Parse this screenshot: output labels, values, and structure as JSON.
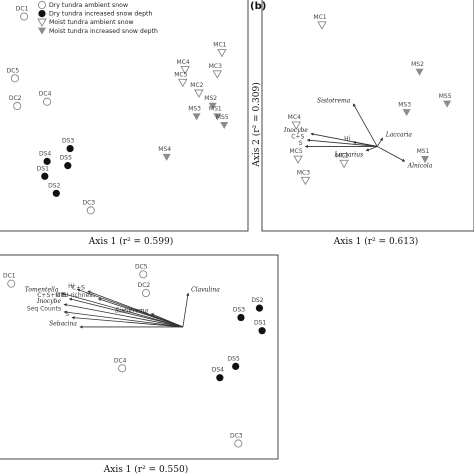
{
  "panel_b_label": "(b)",
  "legend": [
    {
      "label": "Dry tundra ambient snow",
      "marker": "open-circle"
    },
    {
      "label": "Dry tundra increased snow depth",
      "marker": "filled-circle"
    },
    {
      "label": "Moist tundra ambient snow",
      "marker": "open-triangle"
    },
    {
      "label": "Moist tundra increased snow depth",
      "marker": "filled-triangle"
    }
  ],
  "colors": {
    "open_fill": "#ffffff",
    "open_stroke": "#888888",
    "filled_circle": "#111111",
    "filled_triangle": "#8c8c8c",
    "vector": "#333333"
  },
  "chart_data": [
    {
      "type": "scatter",
      "panel": "a",
      "xlabel": "Axis 1 (r² = 0.599)",
      "ylabel": "",
      "xlim": [
        0,
        100
      ],
      "ylim": [
        0,
        100
      ],
      "points": [
        {
          "label": "DC1",
          "group": "dry-ambient",
          "x": 7,
          "y": 96
        },
        {
          "label": "DC5",
          "group": "dry-ambient",
          "x": 3,
          "y": 67
        },
        {
          "label": "DC2",
          "group": "dry-ambient",
          "x": 4,
          "y": 54
        },
        {
          "label": "DC4",
          "group": "dry-ambient",
          "x": 17,
          "y": 56
        },
        {
          "label": "DC3",
          "group": "dry-ambient",
          "x": 36,
          "y": 5
        },
        {
          "label": "DS4",
          "group": "dry-increased",
          "x": 17,
          "y": 28
        },
        {
          "label": "DS3",
          "group": "dry-increased",
          "x": 27,
          "y": 34
        },
        {
          "label": "DS5",
          "group": "dry-increased",
          "x": 26,
          "y": 26
        },
        {
          "label": "DS1",
          "group": "dry-increased",
          "x": 16,
          "y": 21
        },
        {
          "label": "DS2",
          "group": "dry-increased",
          "x": 21,
          "y": 13
        },
        {
          "label": "MC1",
          "group": "moist-ambient",
          "x": 93,
          "y": 79
        },
        {
          "label": "MC4",
          "group": "moist-ambient",
          "x": 77,
          "y": 71
        },
        {
          "label": "MC3",
          "group": "moist-ambient",
          "x": 91,
          "y": 69
        },
        {
          "label": "MC5",
          "group": "moist-ambient",
          "x": 76,
          "y": 65
        },
        {
          "label": "MC2",
          "group": "moist-ambient",
          "x": 83,
          "y": 60
        },
        {
          "label": "MS2",
          "group": "moist-increased",
          "x": 89,
          "y": 54
        },
        {
          "label": "MS3",
          "group": "moist-increased",
          "x": 82,
          "y": 49
        },
        {
          "label": "MS1",
          "group": "moist-increased",
          "x": 91,
          "y": 49
        },
        {
          "label": "MS5",
          "group": "moist-increased",
          "x": 94,
          "y": 45
        },
        {
          "label": "MS4",
          "group": "moist-increased",
          "x": 69,
          "y": 30
        }
      ]
    },
    {
      "type": "scatter",
      "panel": "b",
      "xlabel": "Axis 1 (r² = 0.613)",
      "ylabel": "Axis 2 (r² = 0.309)",
      "xlim": [
        0,
        100
      ],
      "ylim": [
        0,
        100
      ],
      "points": [
        {
          "label": "MC1",
          "group": "moist-ambient",
          "x": 25,
          "y": 92
        },
        {
          "label": "MS2",
          "group": "moist-increased",
          "x": 78,
          "y": 70
        },
        {
          "label": "MS5",
          "group": "moist-increased",
          "x": 93,
          "y": 55
        },
        {
          "label": "MS3",
          "group": "moist-increased",
          "x": 71,
          "y": 51
        },
        {
          "label": "MC4",
          "group": "moist-ambient",
          "x": 11,
          "y": 45
        },
        {
          "label": "MS1",
          "group": "moist-increased",
          "x": 81,
          "y": 29
        },
        {
          "label": "MC5",
          "group": "moist-ambient",
          "x": 12,
          "y": 29
        },
        {
          "label": "MC2",
          "group": "moist-ambient",
          "x": 37,
          "y": 27
        },
        {
          "label": "MC3",
          "group": "moist-ambient",
          "x": 16,
          "y": 19
        }
      ],
      "vector_origin": {
        "x": 55,
        "y": 35
      },
      "vectors": [
        {
          "label": "Sistotrema",
          "x": 42,
          "y": 55
        },
        {
          "label": "Hi",
          "x": 42,
          "y": 37
        },
        {
          "label": "Inocybe",
          "x": 19,
          "y": 41
        },
        {
          "label": "C+S",
          "x": 17,
          "y": 38
        },
        {
          "label": "S",
          "x": 16,
          "y": 35
        },
        {
          "label": "Lactarius",
          "x": 49,
          "y": 33
        },
        {
          "label": "Laccaria",
          "x": 58,
          "y": 39
        },
        {
          "label": "Alnicola",
          "x": 70,
          "y": 28
        }
      ]
    },
    {
      "type": "scatter",
      "panel": "c",
      "xlabel": "Axis 1 (r² = 0.550)",
      "ylabel": "",
      "xlim": [
        0,
        100
      ],
      "ylim": [
        0,
        100
      ],
      "points": [
        {
          "label": "DC1",
          "group": "dry-ambient",
          "x": 2,
          "y": 89
        },
        {
          "label": "DC5",
          "group": "dry-ambient",
          "x": 52,
          "y": 94
        },
        {
          "label": "DC2",
          "group": "dry-ambient",
          "x": 53,
          "y": 84
        },
        {
          "label": "DS2",
          "group": "dry-increased",
          "x": 96,
          "y": 76
        },
        {
          "label": "DS3",
          "group": "dry-increased",
          "x": 89,
          "y": 71
        },
        {
          "label": "DS1",
          "group": "dry-increased",
          "x": 97,
          "y": 64
        },
        {
          "label": "DC4",
          "group": "dry-ambient",
          "x": 44,
          "y": 44
        },
        {
          "label": "DS5",
          "group": "dry-increased",
          "x": 87,
          "y": 45
        },
        {
          "label": "DS4",
          "group": "dry-increased",
          "x": 81,
          "y": 39
        },
        {
          "label": "DC3",
          "group": "dry-ambient",
          "x": 88,
          "y": 4
        }
      ],
      "vector_origin": {
        "x": 67,
        "y": 66
      },
      "vectors": [
        {
          "label": "Hi",
          "x": 27,
          "y": 86
        },
        {
          "label": "C+S",
          "x": 31,
          "y": 85
        },
        {
          "label": "Tomentella",
          "x": 21,
          "y": 84
        },
        {
          "label": "C+S+MIB",
          "x": 24,
          "y": 81
        },
        {
          "label": "OTU richness",
          "x": 35,
          "y": 81
        },
        {
          "label": "Inocybe",
          "x": 22,
          "y": 78
        },
        {
          "label": "Seq Counts",
          "x": 22,
          "y": 74
        },
        {
          "label": "S",
          "x": 25,
          "y": 71
        },
        {
          "label": "Clavulina",
          "x": 69,
          "y": 84
        },
        {
          "label": "Sistotrema",
          "x": 55,
          "y": 73
        },
        {
          "label": "Sebacina",
          "x": 28,
          "y": 66
        }
      ]
    }
  ]
}
